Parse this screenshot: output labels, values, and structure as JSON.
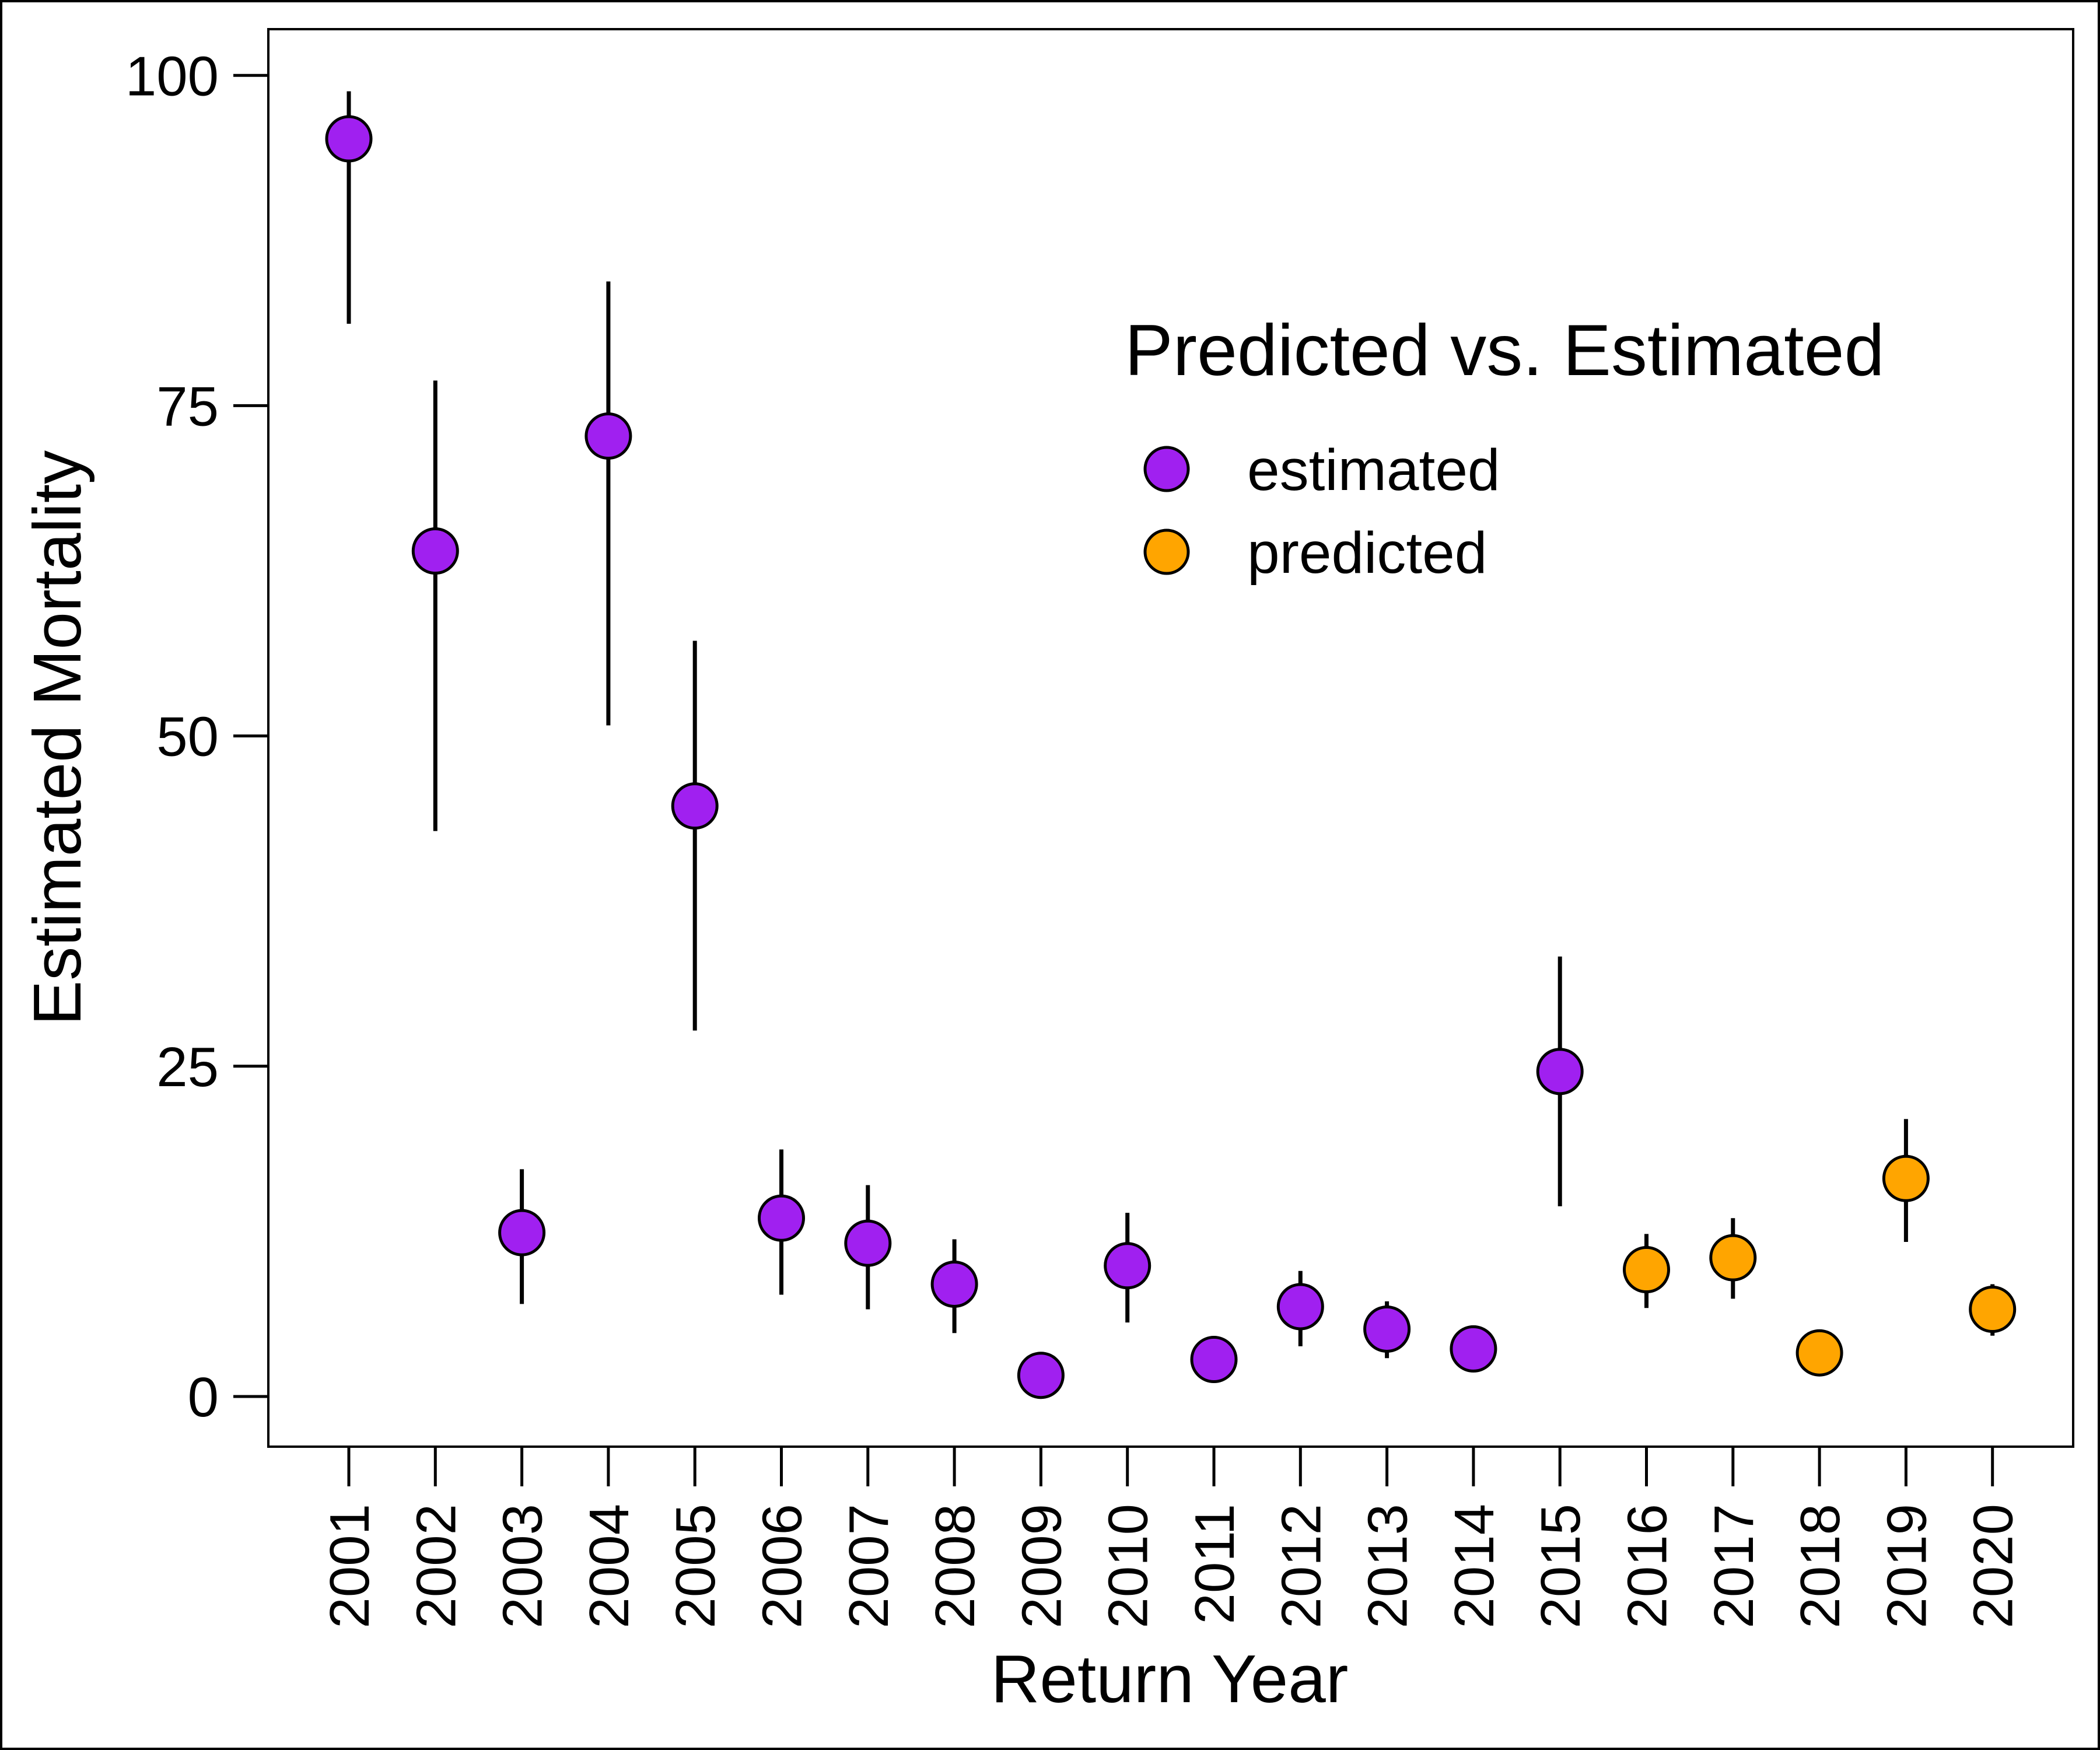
{
  "chart_data": {
    "type": "scatter",
    "title": "",
    "xlabel": "Return Year",
    "ylabel": "Estimated Mortality",
    "categories": [
      "2001",
      "2002",
      "2003",
      "2004",
      "2005",
      "2006",
      "2007",
      "2008",
      "2009",
      "2010",
      "2011",
      "2012",
      "2013",
      "2014",
      "2015",
      "2016",
      "2017",
      "2018",
      "2019",
      "2020"
    ],
    "ylim": [
      -3.8,
      103.5
    ],
    "yticks": [
      0,
      25,
      50,
      75,
      100
    ],
    "grid": false,
    "legend": {
      "title": "Predicted vs. Estimated",
      "placement": "top-right",
      "entries": [
        {
          "label": "estimated",
          "color": "#A020F0"
        },
        {
          "label": "predicted",
          "color": "#FFA500"
        }
      ]
    },
    "points": [
      {
        "x": "2001",
        "y": 95.2,
        "lower": 81.2,
        "upper": 98.8,
        "group": "estimated"
      },
      {
        "x": "2002",
        "y": 64.0,
        "lower": 42.8,
        "upper": 76.9,
        "group": "estimated"
      },
      {
        "x": "2003",
        "y": 12.4,
        "lower": 7.0,
        "upper": 17.2,
        "group": "estimated"
      },
      {
        "x": "2004",
        "y": 72.7,
        "lower": 50.8,
        "upper": 84.4,
        "group": "estimated"
      },
      {
        "x": "2005",
        "y": 44.7,
        "lower": 27.7,
        "upper": 57.2,
        "group": "estimated"
      },
      {
        "x": "2006",
        "y": 13.5,
        "lower": 7.7,
        "upper": 18.7,
        "group": "estimated"
      },
      {
        "x": "2007",
        "y": 11.6,
        "lower": 6.6,
        "upper": 16.0,
        "group": "estimated"
      },
      {
        "x": "2008",
        "y": 8.5,
        "lower": 4.8,
        "upper": 11.9,
        "group": "estimated"
      },
      {
        "x": "2009",
        "y": 1.6,
        "lower": 1.6,
        "upper": 1.6,
        "group": "estimated"
      },
      {
        "x": "2010",
        "y": 9.9,
        "lower": 5.6,
        "upper": 13.9,
        "group": "estimated"
      },
      {
        "x": "2011",
        "y": 2.8,
        "lower": 2.8,
        "upper": 2.8,
        "group": "estimated"
      },
      {
        "x": "2012",
        "y": 6.8,
        "lower": 3.8,
        "upper": 9.5,
        "group": "estimated"
      },
      {
        "x": "2013",
        "y": 5.1,
        "lower": 2.9,
        "upper": 7.2,
        "group": "estimated"
      },
      {
        "x": "2014",
        "y": 3.6,
        "lower": 3.6,
        "upper": 3.6,
        "group": "estimated"
      },
      {
        "x": "2015",
        "y": 24.6,
        "lower": 14.4,
        "upper": 33.3,
        "group": "estimated"
      },
      {
        "x": "2016",
        "y": 9.6,
        "lower": 6.7,
        "upper": 12.3,
        "group": "predicted"
      },
      {
        "x": "2017",
        "y": 10.5,
        "lower": 7.4,
        "upper": 13.5,
        "group": "predicted"
      },
      {
        "x": "2018",
        "y": 3.3,
        "lower": 3.3,
        "upper": 3.3,
        "group": "predicted"
      },
      {
        "x": "2019",
        "y": 16.5,
        "lower": 11.7,
        "upper": 21.0,
        "group": "predicted"
      },
      {
        "x": "2020",
        "y": 6.6,
        "lower": 4.6,
        "upper": 8.5,
        "group": "predicted"
      }
    ]
  }
}
